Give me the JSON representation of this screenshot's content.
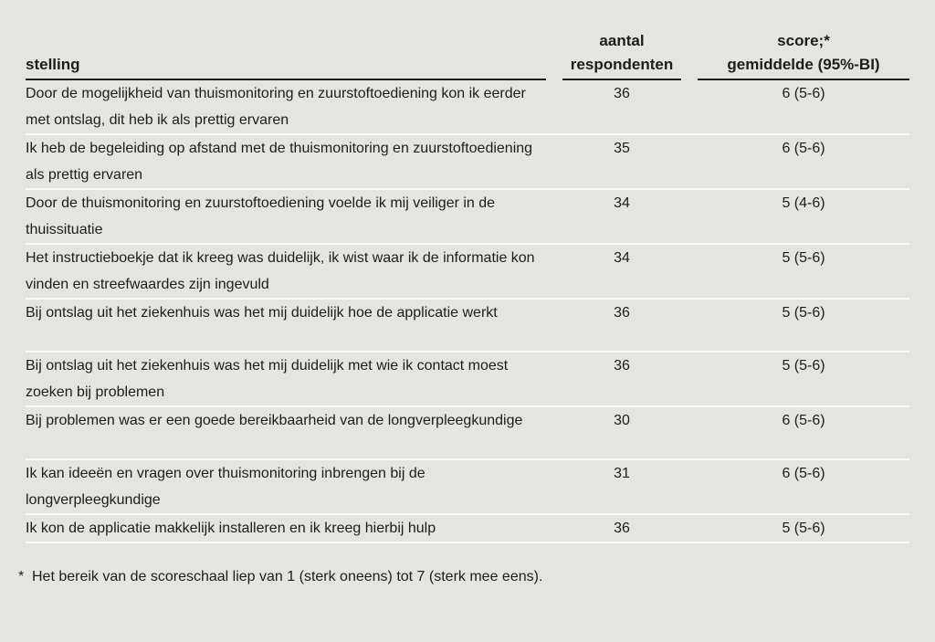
{
  "table": {
    "headers": {
      "stelling": "stelling",
      "aantal_line1": "aantal",
      "aantal_line2": "respondenten",
      "score_line1": "score;*",
      "score_line2": "gemiddelde (95%-BI)"
    },
    "rows": [
      {
        "stelling": "Door de mogelijkheid van thuismonitoring en zuurstoftoediening kon ik eerder met ontslag, dit heb ik als prettig ervaren",
        "aantal": "36",
        "score": "6 (5-6)"
      },
      {
        "stelling": "Ik heb de begeleiding op afstand met de thuismonitoring en zuurstoftoediening als prettig ervaren",
        "aantal": "35",
        "score": "6 (5-6)"
      },
      {
        "stelling": "Door de thuismonitoring en zuurstoftoediening voelde ik mij veiliger in de thuissituatie",
        "aantal": "34",
        "score": "5 (4-6)"
      },
      {
        "stelling": "Het instructieboekje dat ik kreeg was duidelijk, ik wist waar ik de informatie kon vinden en streefwaardes zijn ingevuld",
        "aantal": "34",
        "score": "5 (5-6)"
      },
      {
        "stelling": "Bij ontslag uit het ziekenhuis was het mij duidelijk hoe de applicatie werkt",
        "aantal": "36",
        "score": "5 (5-6)"
      },
      {
        "stelling": "Bij ontslag uit het ziekenhuis was het mij duidelijk met wie ik contact moest zoeken bij problemen",
        "aantal": "36",
        "score": "5 (5-6)"
      },
      {
        "stelling": "Bij problemen was er een goede bereikbaarheid van de longverpleegkundige",
        "aantal": "30",
        "score": "6 (5-6)"
      },
      {
        "stelling": "Ik kan ideeën en vragen over thuismonitoring inbrengen bij de longverpleegkundige",
        "aantal": "31",
        "score": "6 (5-6)"
      },
      {
        "stelling": "Ik kon de applicatie makkelijk installeren en ik kreeg hierbij hulp",
        "aantal": "36",
        "score": "5 (5-6)"
      }
    ]
  },
  "footnote": {
    "marker": "*",
    "text": "Het bereik van de scoreschaal liep van 1 (sterk oneens) tot 7 (sterk mee eens)."
  },
  "colors": {
    "background": "#e4e4e3",
    "text": "#1d1d1b",
    "header_rule": "#1d1d1b",
    "row_divider": "#f9f9f8"
  }
}
